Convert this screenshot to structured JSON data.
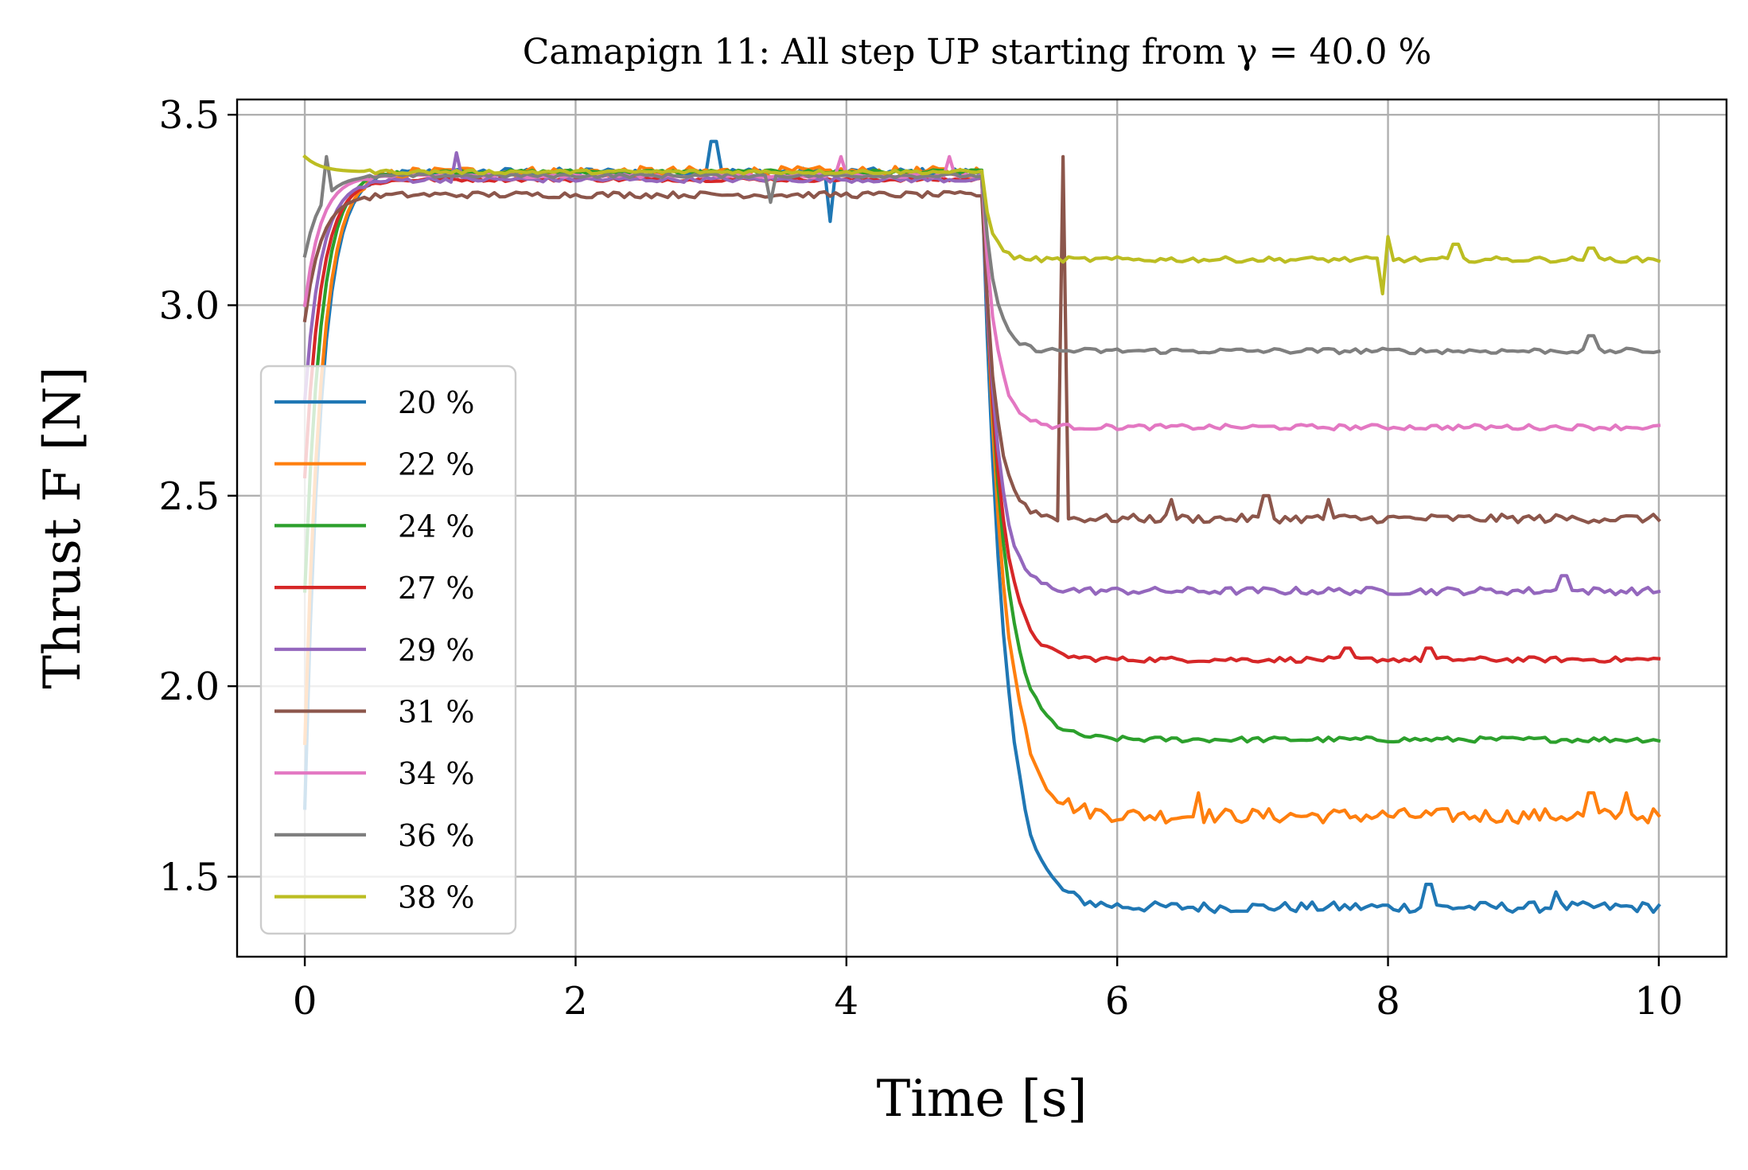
{
  "chart_data": {
    "type": "line",
    "title": "Camapign 11: All step UP starting from γ = 40.0 %",
    "xlabel": "Time [s]",
    "ylabel": "Thrust F [N]",
    "xlim": [
      -0.5,
      10.5
    ],
    "ylim": [
      1.29,
      3.54
    ],
    "xticks": [
      0,
      2,
      4,
      6,
      8,
      10
    ],
    "xtick_labels": [
      "0",
      "2",
      "4",
      "6",
      "8",
      "10"
    ],
    "yticks": [
      1.5,
      2.0,
      2.5,
      3.0,
      3.5
    ],
    "ytick_labels": [
      "1.5",
      "2.0",
      "2.5",
      "3.0",
      "3.5"
    ],
    "grid": true,
    "legend_position": "center-left",
    "step_time": 5.0,
    "series": [
      {
        "name": "20 %",
        "color": "#1f77b4",
        "start": 1.68,
        "plateau": 3.35,
        "final": 1.42,
        "tau": 0.16,
        "noise": 0.02,
        "spikes": [
          {
            "t": 3.02,
            "v": 3.43
          },
          {
            "t": 3.88,
            "v": 3.22
          },
          {
            "t": 8.3,
            "v": 1.48
          },
          {
            "t": 9.25,
            "v": 1.46
          }
        ]
      },
      {
        "name": "22 %",
        "color": "#ff7f0e",
        "start": 1.85,
        "plateau": 3.35,
        "final": 1.66,
        "tau": 0.16,
        "noise": 0.028,
        "spikes": [
          {
            "t": 6.6,
            "v": 1.72
          },
          {
            "t": 9.5,
            "v": 1.72
          },
          {
            "t": 9.75,
            "v": 1.72
          }
        ]
      },
      {
        "name": "24 %",
        "color": "#2ca02c",
        "start": 2.25,
        "plateau": 3.35,
        "final": 1.86,
        "tau": 0.15,
        "noise": 0.01,
        "spikes": []
      },
      {
        "name": "27 %",
        "color": "#d62728",
        "start": 2.55,
        "plateau": 3.33,
        "final": 2.07,
        "tau": 0.13,
        "noise": 0.01,
        "spikes": [
          {
            "t": 7.7,
            "v": 2.1
          },
          {
            "t": 8.3,
            "v": 2.1
          }
        ]
      },
      {
        "name": "29 %",
        "color": "#9467bd",
        "start": 2.75,
        "plateau": 3.33,
        "final": 2.25,
        "tau": 0.11,
        "noise": 0.014,
        "spikes": [
          {
            "t": 1.12,
            "v": 3.4
          },
          {
            "t": 9.3,
            "v": 2.29
          }
        ]
      },
      {
        "name": "31 %",
        "color": "#8c564b",
        "start": 2.96,
        "plateau": 3.29,
        "final": 2.44,
        "tau": 0.1,
        "noise": 0.016,
        "spikes": [
          {
            "t": 5.6,
            "v": 3.39
          },
          {
            "t": 6.4,
            "v": 2.49
          },
          {
            "t": 7.1,
            "v": 2.5
          },
          {
            "t": 7.55,
            "v": 2.49
          }
        ]
      },
      {
        "name": "34 %",
        "color": "#e377c2",
        "start": 3.0,
        "plateau": 3.34,
        "final": 2.68,
        "tau": 0.1,
        "noise": 0.01,
        "spikes": [
          {
            "t": 3.95,
            "v": 3.39
          },
          {
            "t": 4.75,
            "v": 3.39
          }
        ]
      },
      {
        "name": "36 %",
        "color": "#7f7f7f",
        "start": 3.13,
        "plateau": 3.34,
        "final": 2.88,
        "tau": 0.09,
        "noise": 0.01,
        "spikes": [
          {
            "t": 0.15,
            "v": 3.39
          },
          {
            "t": 3.45,
            "v": 3.27
          },
          {
            "t": 9.5,
            "v": 2.92
          }
        ]
      },
      {
        "name": "38 %",
        "color": "#bcbd22",
        "start": 3.39,
        "plateau": 3.35,
        "final": 3.12,
        "tau": 0.07,
        "noise": 0.01,
        "spikes": [
          {
            "t": 7.95,
            "v": 3.03
          },
          {
            "t": 8.0,
            "v": 3.18
          },
          {
            "t": 8.5,
            "v": 3.16
          },
          {
            "t": 9.5,
            "v": 3.15
          }
        ]
      }
    ]
  }
}
